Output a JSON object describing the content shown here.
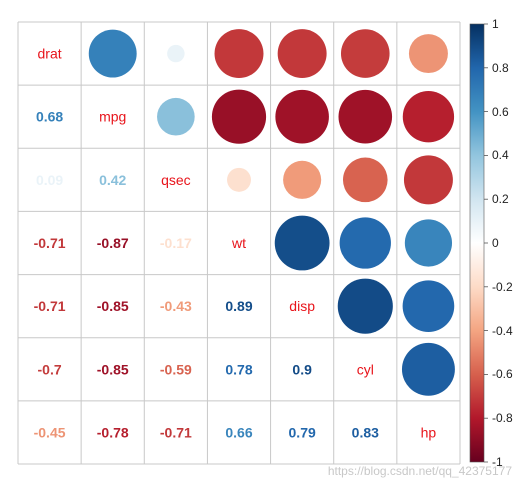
{
  "chart_data": {
    "type": "heatmap",
    "variables": [
      "drat",
      "mpg",
      "qsec",
      "wt",
      "disp",
      "cyl",
      "hp"
    ],
    "upper_method": "circle",
    "lower_method": "number",
    "diagonal": "variable name",
    "matrix": [
      [
        1,
        0.68,
        0.09,
        -0.71,
        -0.71,
        -0.7,
        -0.45
      ],
      [
        0.68,
        1,
        0.42,
        -0.87,
        -0.85,
        -0.85,
        -0.78
      ],
      [
        0.09,
        0.42,
        1,
        -0.17,
        -0.43,
        -0.59,
        -0.71
      ],
      [
        -0.71,
        -0.87,
        -0.17,
        1,
        0.89,
        0.78,
        0.66
      ],
      [
        -0.71,
        -0.85,
        -0.43,
        0.89,
        1,
        0.9,
        0.79
      ],
      [
        -0.7,
        -0.85,
        -0.59,
        0.78,
        0.9,
        1,
        0.83
      ],
      [
        -0.45,
        -0.78,
        -0.71,
        0.66,
        0.79,
        0.83,
        1
      ]
    ],
    "lower_labels": [
      [
        "0.68"
      ],
      [
        "0.09",
        "0.42"
      ],
      [
        "-0.71",
        "-0.87",
        "-0.17"
      ],
      [
        "-0.71",
        "-0.85",
        "-0.43",
        "0.89"
      ],
      [
        "-0.7",
        "-0.85",
        "-0.59",
        "0.78",
        "0.9"
      ],
      [
        "-0.45",
        "-0.78",
        "-0.71",
        "0.66",
        "0.79",
        "0.83"
      ]
    ],
    "colorbar": {
      "range": [
        -1,
        1
      ],
      "ticks": [
        "1",
        "0.8",
        "0.6",
        "0.4",
        "0.2",
        "0",
        "-0.2",
        "-0.4",
        "-0.6",
        "-0.8",
        "-1"
      ],
      "colors": [
        "#67001F",
        "#B2182B",
        "#D6604D",
        "#F4A582",
        "#FDDBC7",
        "#FFFFFF",
        "#D1E5F0",
        "#92C5DE",
        "#4393C3",
        "#2166AC",
        "#053061"
      ]
    },
    "grid": true
  },
  "watermark": "https://blog.csdn.net/qq_42375177"
}
